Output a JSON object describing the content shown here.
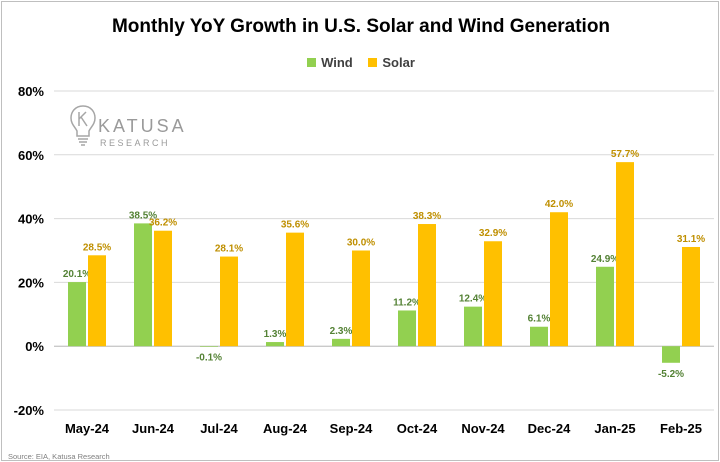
{
  "title": "Monthly YoY Growth in U.S. Solar and Wind Generation",
  "source": "Source: EIA, Katusa Research",
  "logo": {
    "word": "KATUSA",
    "sub": "RESEARCH",
    "icon": "lightbulb-icon"
  },
  "colors": {
    "wind": "#92d050",
    "solar": "#ffc000",
    "wind_label": "#548235",
    "solar_label": "#bf8f00",
    "grid": "#d9d9d9"
  },
  "chart_data": {
    "type": "bar",
    "title": "Monthly YoY Growth in U.S. Solar and Wind Generation",
    "xlabel": "",
    "ylabel": "",
    "categories": [
      "May-24",
      "Jun-24",
      "Jul-24",
      "Aug-24",
      "Sep-24",
      "Oct-24",
      "Nov-24",
      "Dec-24",
      "Jan-25",
      "Feb-25"
    ],
    "series": [
      {
        "name": "Wind",
        "values": [
          20.1,
          38.5,
          -0.1,
          1.3,
          2.3,
          11.2,
          12.4,
          6.1,
          24.9,
          -5.2
        ],
        "labels": [
          "20.1%",
          "38.5%",
          "-0.1%",
          "1.3%",
          "2.3%",
          "11.2%",
          "12.4%",
          "6.1%",
          "24.9%",
          "-5.2%"
        ]
      },
      {
        "name": "Solar",
        "values": [
          28.5,
          36.2,
          28.1,
          35.6,
          30.0,
          38.3,
          32.9,
          42.0,
          57.7,
          31.1
        ],
        "labels": [
          "28.5%",
          "36.2%",
          "28.1%",
          "35.6%",
          "30.0%",
          "38.3%",
          "32.9%",
          "42.0%",
          "57.7%",
          "31.1%"
        ]
      }
    ],
    "ylim": [
      -20,
      80
    ],
    "yticks": [
      -20,
      0,
      20,
      40,
      60,
      80
    ],
    "ytick_labels": [
      "-20%",
      "0%",
      "20%",
      "40%",
      "60%",
      "80%"
    ],
    "grid": true,
    "legend": "top-center"
  }
}
